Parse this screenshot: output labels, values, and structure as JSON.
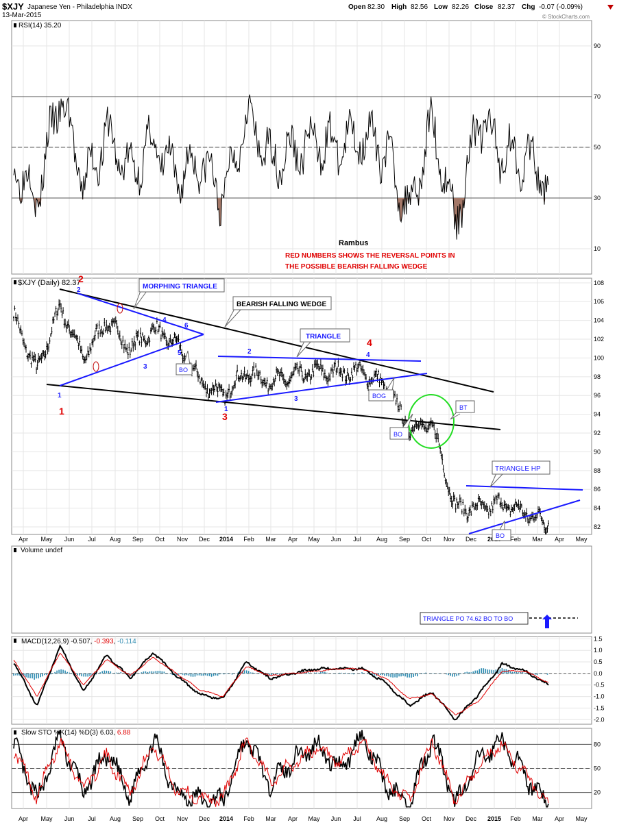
{
  "header": {
    "symbol": "$XJY",
    "name": "Japanese Yen - Philadelphia  INDX",
    "date": "13-Mar-2015",
    "open_label": "Open",
    "open": "82.30",
    "high_label": "High",
    "high": "82.56",
    "low_label": "Low",
    "low": "82.26",
    "close_label": "Close",
    "close": "82.37",
    "chg_label": "Chg",
    "chg": "-0.07 (-0.09%)",
    "watermark": "© StockCharts.com"
  },
  "x_months": [
    "Apr",
    "May",
    "Jun",
    "Jul",
    "Aug",
    "Sep",
    "Oct",
    "Nov",
    "Dec",
    "2014",
    "Feb",
    "Mar",
    "Apr",
    "May",
    "Jun",
    "Jul",
    "Aug",
    "Sep",
    "Oct",
    "Nov",
    "Dec",
    "2015",
    "Feb",
    "Mar",
    "Apr",
    "May"
  ],
  "rsi": {
    "legend": "RSI(14) 35.20",
    "ticks": [
      "90",
      "70",
      "50",
      "30",
      "10"
    ],
    "author": "Rambus",
    "note1": "RED NUMBERS SHOWS THE REVERSAL POINTS IN",
    "note2": "THE POSSIBLE BEARISH FALLING WEDGE"
  },
  "price": {
    "legend": "$XJY (Daily) 82.37",
    "ticks": [
      "108",
      "106",
      "104",
      "102",
      "100",
      "98",
      "96",
      "94",
      "92",
      "90",
      "88",
      "86",
      "84",
      "82"
    ],
    "annotations": {
      "morphing": "MORPHING TRIANGLE",
      "wedge": "BEARISH FALLING WEDGE",
      "triangle": "TRIANGLE",
      "triangle_hp": "TRIANGLE HP",
      "bo1": "BO",
      "bog": "BOG",
      "bo2": "BO",
      "bt": "BT",
      "bo3": "BO"
    },
    "labels": {
      "r1": "1",
      "r2": "2",
      "r3": "3",
      "r4": "4",
      "b1": "1",
      "b2": "2",
      "b3": "3",
      "b4": "4",
      "b5": "5",
      "b6": "6",
      "t1": "1",
      "t2": "2",
      "t3": "3",
      "t4": "4"
    }
  },
  "volume": {
    "legend": "Volume undef",
    "target": "TRIANGLE PO 74.62 BO TO BO"
  },
  "macd": {
    "legend_name": "MACD(12,26,9)",
    "legend_v1": "-0.507",
    "legend_v2": "-0.393",
    "legend_v3": "-0.114",
    "ticks": [
      "1.5",
      "1.0",
      "0.5",
      "0.0",
      "-0.5",
      "-1.0",
      "-1.5",
      "-2.0"
    ]
  },
  "sto": {
    "legend_name": "Slow STO %K(14) %D(3)",
    "legend_v1": "6.03",
    "legend_v2": "6.88",
    "ticks": [
      "80",
      "50",
      "20"
    ]
  },
  "chart_data": [
    {
      "type": "line",
      "title": "RSI(14)",
      "ylim": [
        0,
        100
      ],
      "reference_lines": [
        30,
        50,
        70
      ],
      "x": [
        "2013-04",
        "2013-05",
        "2013-06",
        "2013-07",
        "2013-08",
        "2013-09",
        "2013-10",
        "2013-11",
        "2013-12",
        "2014-01",
        "2014-02",
        "2014-03",
        "2014-04",
        "2014-05",
        "2014-06",
        "2014-07",
        "2014-08",
        "2014-09",
        "2014-10",
        "2014-11",
        "2014-12",
        "2015-01",
        "2015-02",
        "2015-03"
      ],
      "series": [
        {
          "name": "RSI(14)",
          "values": [
            45,
            30,
            71,
            35,
            55,
            40,
            52,
            38,
            45,
            30,
            63,
            45,
            48,
            52,
            50,
            55,
            48,
            25,
            60,
            20,
            62,
            48,
            46,
            35.2
          ]
        }
      ]
    },
    {
      "type": "line",
      "title": "$XJY (Daily)",
      "ylim": [
        81.2,
        108.5
      ],
      "x": [
        "2013-04",
        "2013-05",
        "2013-06",
        "2013-07",
        "2013-08",
        "2013-09",
        "2013-10",
        "2013-11",
        "2013-12",
        "2014-01",
        "2014-02",
        "2014-03",
        "2014-04",
        "2014-05",
        "2014-06",
        "2014-07",
        "2014-08",
        "2014-09",
        "2014-10",
        "2014-11",
        "2014-12",
        "2015-01",
        "2015-02",
        "2015-03"
      ],
      "series": [
        {
          "name": "$XJY",
          "values": [
            104.5,
            98.5,
            105.5,
            100,
            104,
            101,
            103,
            101.5,
            97.5,
            96,
            98.5,
            97.5,
            98,
            98.5,
            98.5,
            98.5,
            97,
            92.5,
            93,
            84,
            84,
            84.5,
            83.5,
            82.37
          ]
        }
      ]
    },
    {
      "type": "line",
      "title": "MACD(12,26,9)",
      "ylim": [
        -2.2,
        1.6
      ],
      "x": [
        "2013-04",
        "2013-05",
        "2013-06",
        "2013-07",
        "2013-08",
        "2013-09",
        "2013-10",
        "2013-11",
        "2013-12",
        "2014-01",
        "2014-02",
        "2014-03",
        "2014-04",
        "2014-05",
        "2014-06",
        "2014-07",
        "2014-08",
        "2014-09",
        "2014-10",
        "2014-11",
        "2014-12",
        "2015-01",
        "2015-02",
        "2015-03"
      ],
      "series": [
        {
          "name": "MACD",
          "values": [
            0.5,
            -1.4,
            1.2,
            -0.8,
            0.8,
            -0.2,
            0.9,
            -0.1,
            -0.9,
            -1.1,
            0.5,
            -0.2,
            0.0,
            0.2,
            0.2,
            0.2,
            -0.4,
            -1.4,
            -0.8,
            -2.0,
            -0.9,
            0.4,
            0.1,
            -0.507
          ]
        },
        {
          "name": "Signal",
          "values": [
            0.6,
            -1.0,
            0.9,
            -0.5,
            0.6,
            -0.1,
            0.7,
            0.0,
            -0.7,
            -1.0,
            0.3,
            -0.1,
            0.0,
            0.1,
            0.2,
            0.2,
            -0.2,
            -1.1,
            -0.9,
            -1.8,
            -1.2,
            0.1,
            0.1,
            -0.393
          ]
        }
      ]
    },
    {
      "type": "line",
      "title": "Slow STO %K(14) %D(3)",
      "ylim": [
        0,
        100
      ],
      "reference_lines": [
        20,
        50,
        80
      ],
      "x": [
        "2013-04",
        "2013-05",
        "2013-06",
        "2013-07",
        "2013-08",
        "2013-09",
        "2013-10",
        "2013-11",
        "2013-12",
        "2014-01",
        "2014-02",
        "2014-03",
        "2014-04",
        "2014-05",
        "2014-06",
        "2014-07",
        "2014-08",
        "2014-09",
        "2014-10",
        "2014-11",
        "2014-12",
        "2015-01",
        "2015-02",
        "2015-03"
      ],
      "series": [
        {
          "name": "%K",
          "values": [
            80,
            10,
            90,
            20,
            70,
            15,
            85,
            20,
            10,
            10,
            90,
            30,
            60,
            80,
            50,
            90,
            30,
            5,
            90,
            5,
            60,
            85,
            40,
            6.03
          ]
        },
        {
          "name": "%D",
          "values": [
            75,
            15,
            85,
            25,
            65,
            20,
            80,
            25,
            12,
            12,
            85,
            35,
            55,
            75,
            55,
            85,
            35,
            8,
            85,
            8,
            55,
            80,
            42,
            6.88
          ]
        }
      ]
    }
  ]
}
